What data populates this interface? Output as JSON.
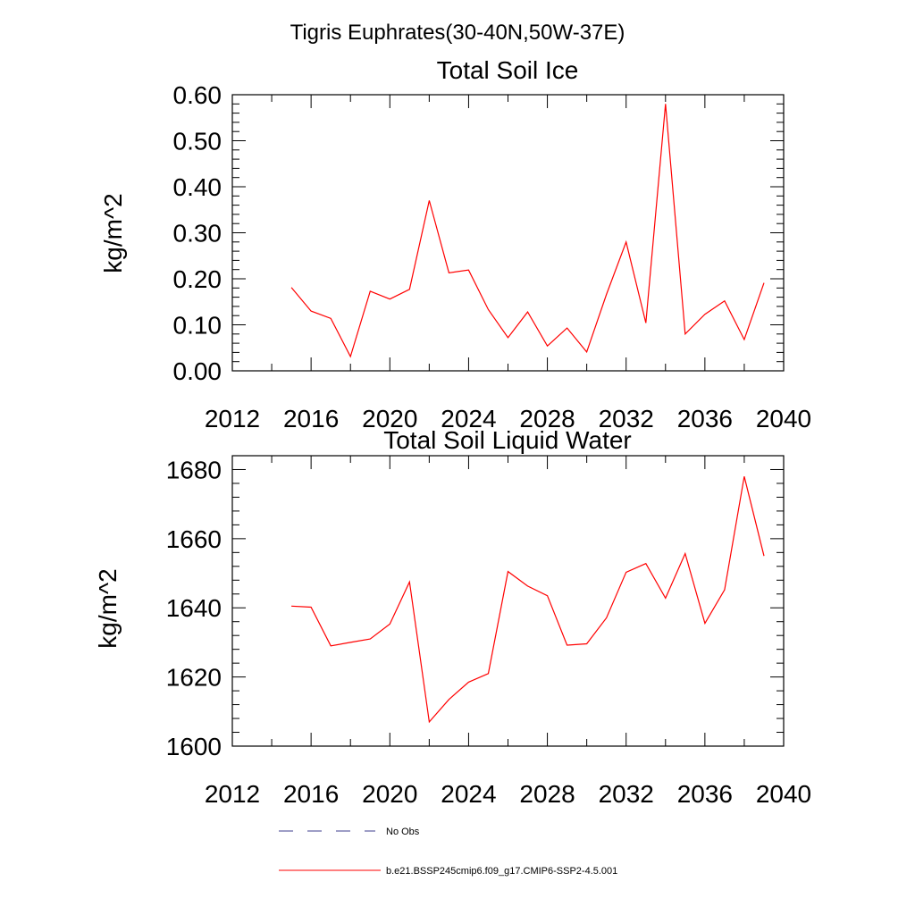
{
  "page_title": "Tigris Euphrates(30-40N,50W-37E)",
  "colors": {
    "model_series": "#ff0000",
    "obs_series": "#3c3c8c",
    "axis": "#000000"
  },
  "legend": {
    "placement": "bottom",
    "entries": [
      {
        "label": "No Obs",
        "style": "dashed",
        "color": "#3c3c8c"
      },
      {
        "label": "b.e21.BSSP245cmip6.f09_g17.CMIP6-SSP2-4.5.001",
        "style": "solid",
        "color": "#ff0000"
      }
    ]
  },
  "chart_data": [
    {
      "type": "line",
      "title": "Total Soil Ice",
      "xlabel": "",
      "ylabel": "kg/m^2",
      "xlim": [
        2012,
        2040
      ],
      "ylim": [
        0,
        0.6
      ],
      "x_ticks": [
        2012,
        2016,
        2020,
        2024,
        2028,
        2032,
        2036,
        2040
      ],
      "x_minor_ticks": [
        2014,
        2018,
        2022,
        2026,
        2030,
        2034,
        2038
      ],
      "y_ticks": [
        0,
        0.1,
        0.2,
        0.3,
        0.4,
        0.5,
        0.6
      ],
      "y_tick_labels": [
        "0.00",
        "0.10",
        "0.20",
        "0.30",
        "0.40",
        "0.50",
        "0.60"
      ],
      "y_minor_step": 0.02,
      "grid": false,
      "series": [
        {
          "color": "#ff0000",
          "x": [
            2015,
            2016,
            2017,
            2018,
            2019,
            2020,
            2021,
            2022,
            2023,
            2024,
            2025,
            2026,
            2027,
            2028,
            2029,
            2030,
            2031,
            2032,
            2033,
            2034,
            2035,
            2036,
            2037,
            2038,
            2039
          ],
          "values": [
            0.181,
            0.13,
            0.114,
            0.031,
            0.173,
            0.156,
            0.177,
            0.37,
            0.213,
            0.219,
            0.133,
            0.072,
            0.128,
            0.054,
            0.093,
            0.041,
            0.166,
            0.28,
            0.104,
            0.58,
            0.08,
            0.123,
            0.152,
            0.068,
            0.191
          ]
        }
      ]
    },
    {
      "type": "line",
      "title": "Total Soil Liquid Water",
      "xlabel": "",
      "ylabel": "kg/m^2",
      "xlim": [
        2012,
        2040
      ],
      "ylim": [
        1600,
        1684
      ],
      "x_ticks": [
        2012,
        2016,
        2020,
        2024,
        2028,
        2032,
        2036,
        2040
      ],
      "x_minor_ticks": [
        2014,
        2018,
        2022,
        2026,
        2030,
        2034,
        2038
      ],
      "y_ticks": [
        1600,
        1620,
        1640,
        1660,
        1680
      ],
      "y_tick_labels": [
        "1600",
        "1620",
        "1640",
        "1660",
        "1680"
      ],
      "y_minor_step": 4,
      "grid": false,
      "series": [
        {
          "color": "#ff0000",
          "x": [
            2015,
            2016,
            2017,
            2018,
            2019,
            2020,
            2021,
            2022,
            2023,
            2024,
            2025,
            2026,
            2027,
            2028,
            2029,
            2030,
            2031,
            2032,
            2033,
            2034,
            2035,
            2036,
            2037,
            2038,
            2039
          ],
          "values": [
            1640.5,
            1640.2,
            1629.0,
            1630.0,
            1631.0,
            1635.3,
            1647.5,
            1607.0,
            1613.5,
            1618.5,
            1621.0,
            1650.5,
            1646.3,
            1643.5,
            1629.2,
            1629.6,
            1637.1,
            1650.3,
            1652.8,
            1642.8,
            1655.7,
            1635.5,
            1645.2,
            1678.0,
            1655.0
          ]
        }
      ]
    }
  ]
}
